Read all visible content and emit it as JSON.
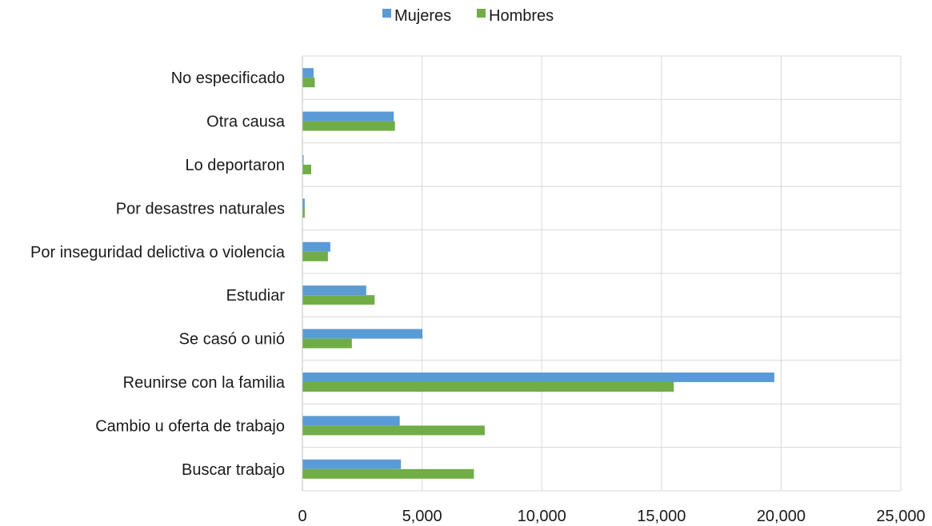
{
  "chart_data": {
    "type": "bar",
    "orientation": "horizontal",
    "categories": [
      "No especificado",
      "Otra causa",
      "Lo deportaron",
      "Por desastres naturales",
      "Por inseguridad delictiva o violencia",
      "Estudiar",
      "Se casó o unió",
      "Reunirse con la familia",
      "Cambio u oferta de trabajo",
      "Buscar trabajo"
    ],
    "series": [
      {
        "name": "Mujeres",
        "color": "#5b9bd5",
        "values": [
          450,
          3800,
          30,
          80,
          1150,
          2650,
          5000,
          19700,
          4050,
          4100
        ]
      },
      {
        "name": "Hombres",
        "color": "#70ad47",
        "values": [
          500,
          3850,
          350,
          80,
          1050,
          3000,
          2050,
          15500,
          7600,
          7150
        ]
      }
    ],
    "xlim": [
      0,
      25000
    ],
    "xticks": [
      0,
      5000,
      10000,
      15000,
      20000,
      25000
    ],
    "xtick_labels": [
      "0",
      "5,000",
      "10,000",
      "15,000",
      "20,000",
      "25,000"
    ],
    "grid": true,
    "legend": "top-center"
  }
}
